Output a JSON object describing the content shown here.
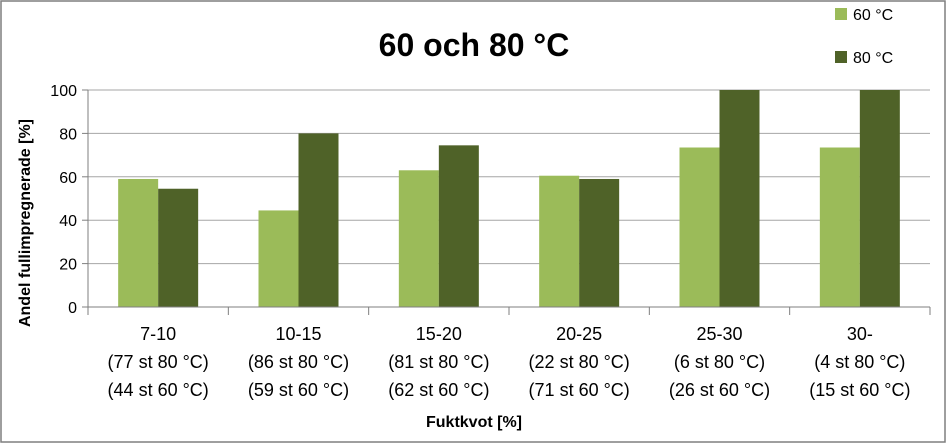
{
  "chart_data": {
    "type": "bar",
    "title": "60 och 80 °C",
    "xlabel": "Fuktkvot [%]",
    "ylabel": "Andel fullimpregnerade [%]",
    "ylim": [
      0,
      100
    ],
    "yticks": [
      "0",
      "20",
      "40",
      "60",
      "80",
      "100"
    ],
    "grid": true,
    "legend_position": "top-right",
    "categories": [
      [
        "7-10",
        "(77 st 80 °C)",
        "(44 st 60 °C)"
      ],
      [
        "10-15",
        "(86 st 80 °C)",
        "(59 st 60 °C)"
      ],
      [
        "15-20",
        "(81 st 80 °C)",
        "(62 st 60 °C)"
      ],
      [
        "20-25",
        "(22 st 80 °C)",
        "(71 st 60 °C)"
      ],
      [
        "25-30",
        "(6 st 80 °C)",
        "(26 st 60 °C)"
      ],
      [
        "30-",
        "(4 st 80 °C)",
        "(15 st 60 °C)"
      ]
    ],
    "series": [
      {
        "name": "60 °C",
        "color": "#9bbb59",
        "values": [
          59,
          44.5,
          63,
          60.5,
          73.5,
          73.5
        ]
      },
      {
        "name": "80 °C",
        "color": "#4f6228",
        "values": [
          54.5,
          80,
          74.5,
          59,
          100,
          100
        ]
      }
    ]
  }
}
